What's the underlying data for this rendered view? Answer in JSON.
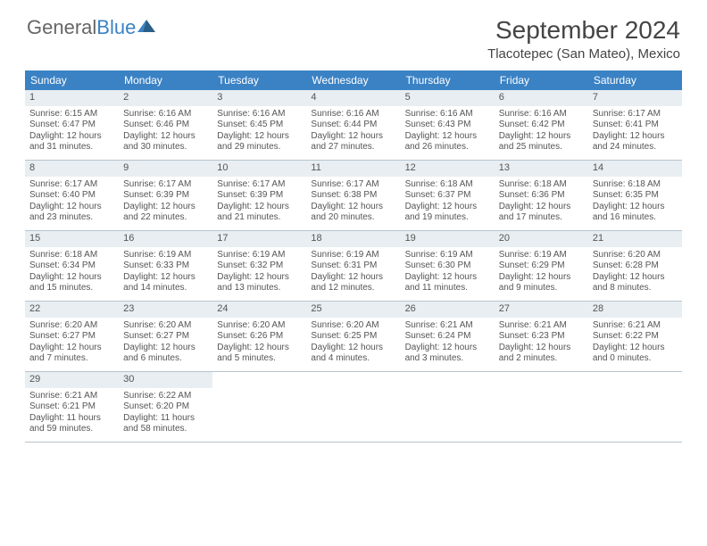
{
  "brand": {
    "part1": "General",
    "part2": "Blue"
  },
  "title": "September 2024",
  "location": "Tlacotepec (San Mateo), Mexico",
  "header_bg": "#3b82c4",
  "daynum_bg": "#e8eef2",
  "weekdays": [
    "Sunday",
    "Monday",
    "Tuesday",
    "Wednesday",
    "Thursday",
    "Friday",
    "Saturday"
  ],
  "weeks": [
    [
      {
        "n": "1",
        "sr": "Sunrise: 6:15 AM",
        "ss": "Sunset: 6:47 PM",
        "d1": "Daylight: 12 hours",
        "d2": "and 31 minutes."
      },
      {
        "n": "2",
        "sr": "Sunrise: 6:16 AM",
        "ss": "Sunset: 6:46 PM",
        "d1": "Daylight: 12 hours",
        "d2": "and 30 minutes."
      },
      {
        "n": "3",
        "sr": "Sunrise: 6:16 AM",
        "ss": "Sunset: 6:45 PM",
        "d1": "Daylight: 12 hours",
        "d2": "and 29 minutes."
      },
      {
        "n": "4",
        "sr": "Sunrise: 6:16 AM",
        "ss": "Sunset: 6:44 PM",
        "d1": "Daylight: 12 hours",
        "d2": "and 27 minutes."
      },
      {
        "n": "5",
        "sr": "Sunrise: 6:16 AM",
        "ss": "Sunset: 6:43 PM",
        "d1": "Daylight: 12 hours",
        "d2": "and 26 minutes."
      },
      {
        "n": "6",
        "sr": "Sunrise: 6:16 AM",
        "ss": "Sunset: 6:42 PM",
        "d1": "Daylight: 12 hours",
        "d2": "and 25 minutes."
      },
      {
        "n": "7",
        "sr": "Sunrise: 6:17 AM",
        "ss": "Sunset: 6:41 PM",
        "d1": "Daylight: 12 hours",
        "d2": "and 24 minutes."
      }
    ],
    [
      {
        "n": "8",
        "sr": "Sunrise: 6:17 AM",
        "ss": "Sunset: 6:40 PM",
        "d1": "Daylight: 12 hours",
        "d2": "and 23 minutes."
      },
      {
        "n": "9",
        "sr": "Sunrise: 6:17 AM",
        "ss": "Sunset: 6:39 PM",
        "d1": "Daylight: 12 hours",
        "d2": "and 22 minutes."
      },
      {
        "n": "10",
        "sr": "Sunrise: 6:17 AM",
        "ss": "Sunset: 6:39 PM",
        "d1": "Daylight: 12 hours",
        "d2": "and 21 minutes."
      },
      {
        "n": "11",
        "sr": "Sunrise: 6:17 AM",
        "ss": "Sunset: 6:38 PM",
        "d1": "Daylight: 12 hours",
        "d2": "and 20 minutes."
      },
      {
        "n": "12",
        "sr": "Sunrise: 6:18 AM",
        "ss": "Sunset: 6:37 PM",
        "d1": "Daylight: 12 hours",
        "d2": "and 19 minutes."
      },
      {
        "n": "13",
        "sr": "Sunrise: 6:18 AM",
        "ss": "Sunset: 6:36 PM",
        "d1": "Daylight: 12 hours",
        "d2": "and 17 minutes."
      },
      {
        "n": "14",
        "sr": "Sunrise: 6:18 AM",
        "ss": "Sunset: 6:35 PM",
        "d1": "Daylight: 12 hours",
        "d2": "and 16 minutes."
      }
    ],
    [
      {
        "n": "15",
        "sr": "Sunrise: 6:18 AM",
        "ss": "Sunset: 6:34 PM",
        "d1": "Daylight: 12 hours",
        "d2": "and 15 minutes."
      },
      {
        "n": "16",
        "sr": "Sunrise: 6:19 AM",
        "ss": "Sunset: 6:33 PM",
        "d1": "Daylight: 12 hours",
        "d2": "and 14 minutes."
      },
      {
        "n": "17",
        "sr": "Sunrise: 6:19 AM",
        "ss": "Sunset: 6:32 PM",
        "d1": "Daylight: 12 hours",
        "d2": "and 13 minutes."
      },
      {
        "n": "18",
        "sr": "Sunrise: 6:19 AM",
        "ss": "Sunset: 6:31 PM",
        "d1": "Daylight: 12 hours",
        "d2": "and 12 minutes."
      },
      {
        "n": "19",
        "sr": "Sunrise: 6:19 AM",
        "ss": "Sunset: 6:30 PM",
        "d1": "Daylight: 12 hours",
        "d2": "and 11 minutes."
      },
      {
        "n": "20",
        "sr": "Sunrise: 6:19 AM",
        "ss": "Sunset: 6:29 PM",
        "d1": "Daylight: 12 hours",
        "d2": "and 9 minutes."
      },
      {
        "n": "21",
        "sr": "Sunrise: 6:20 AM",
        "ss": "Sunset: 6:28 PM",
        "d1": "Daylight: 12 hours",
        "d2": "and 8 minutes."
      }
    ],
    [
      {
        "n": "22",
        "sr": "Sunrise: 6:20 AM",
        "ss": "Sunset: 6:27 PM",
        "d1": "Daylight: 12 hours",
        "d2": "and 7 minutes."
      },
      {
        "n": "23",
        "sr": "Sunrise: 6:20 AM",
        "ss": "Sunset: 6:27 PM",
        "d1": "Daylight: 12 hours",
        "d2": "and 6 minutes."
      },
      {
        "n": "24",
        "sr": "Sunrise: 6:20 AM",
        "ss": "Sunset: 6:26 PM",
        "d1": "Daylight: 12 hours",
        "d2": "and 5 minutes."
      },
      {
        "n": "25",
        "sr": "Sunrise: 6:20 AM",
        "ss": "Sunset: 6:25 PM",
        "d1": "Daylight: 12 hours",
        "d2": "and 4 minutes."
      },
      {
        "n": "26",
        "sr": "Sunrise: 6:21 AM",
        "ss": "Sunset: 6:24 PM",
        "d1": "Daylight: 12 hours",
        "d2": "and 3 minutes."
      },
      {
        "n": "27",
        "sr": "Sunrise: 6:21 AM",
        "ss": "Sunset: 6:23 PM",
        "d1": "Daylight: 12 hours",
        "d2": "and 2 minutes."
      },
      {
        "n": "28",
        "sr": "Sunrise: 6:21 AM",
        "ss": "Sunset: 6:22 PM",
        "d1": "Daylight: 12 hours",
        "d2": "and 0 minutes."
      }
    ],
    [
      {
        "n": "29",
        "sr": "Sunrise: 6:21 AM",
        "ss": "Sunset: 6:21 PM",
        "d1": "Daylight: 11 hours",
        "d2": "and 59 minutes."
      },
      {
        "n": "30",
        "sr": "Sunrise: 6:22 AM",
        "ss": "Sunset: 6:20 PM",
        "d1": "Daylight: 11 hours",
        "d2": "and 58 minutes."
      },
      {
        "empty": true
      },
      {
        "empty": true
      },
      {
        "empty": true
      },
      {
        "empty": true
      },
      {
        "empty": true
      }
    ]
  ]
}
